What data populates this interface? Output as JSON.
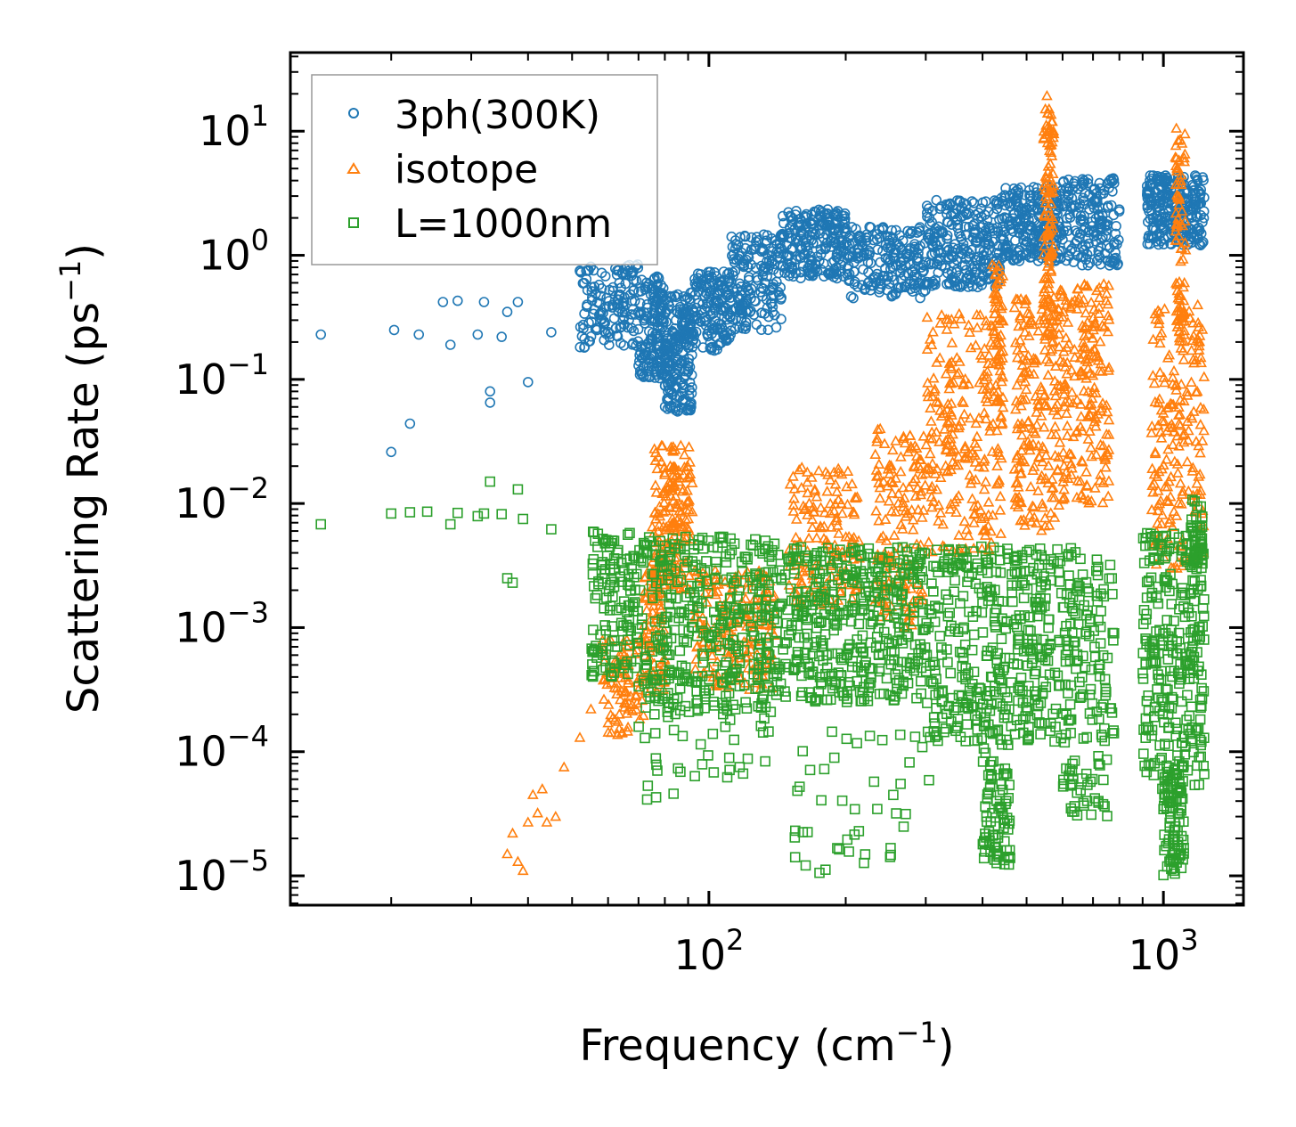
{
  "chart_data": {
    "type": "scatter",
    "title": "",
    "xlabel": "Frequency (cm",
    "xlabel_sup": "−1",
    "xlabel_end": ")",
    "ylabel": "Scattering Rate (ps",
    "ylabel_sup": "−1",
    "ylabel_end": ")",
    "xscale": "log",
    "yscale": "log",
    "xlim": [
      12,
      1500
    ],
    "ylim": [
      5.8e-06,
      43
    ],
    "xticks": [
      {
        "value": 100,
        "base": "10",
        "exp": "2"
      },
      {
        "value": 1000,
        "base": "10",
        "exp": "3"
      }
    ],
    "yticks": [
      {
        "value": 1e-05,
        "base": "10",
        "exp": "−5"
      },
      {
        "value": 0.0001,
        "base": "10",
        "exp": "−4"
      },
      {
        "value": 0.001,
        "base": "10",
        "exp": "−3"
      },
      {
        "value": 0.01,
        "base": "10",
        "exp": "−2"
      },
      {
        "value": 0.1,
        "base": "10",
        "exp": "−1"
      },
      {
        "value": 1,
        "base": "10",
        "exp": "0"
      },
      {
        "value": 10,
        "base": "10",
        "exp": "1"
      }
    ],
    "legend_position": "top-left",
    "series": [
      {
        "name": "3ph(300K)",
        "marker": "circle",
        "color": "#1f77b4",
        "anchor_points": [
          [
            14,
            0.23
          ],
          [
            20,
            0.026
          ],
          [
            20.3,
            0.25
          ],
          [
            22,
            0.044
          ],
          [
            23,
            0.23
          ],
          [
            26,
            0.42
          ],
          [
            27,
            0.19
          ],
          [
            28,
            0.43
          ],
          [
            31,
            0.23
          ],
          [
            32,
            0.42
          ],
          [
            33,
            0.08
          ],
          [
            33,
            0.065
          ],
          [
            35,
            0.22
          ],
          [
            36,
            0.35
          ],
          [
            38,
            0.42
          ],
          [
            40,
            0.095
          ],
          [
            45,
            0.24
          ]
        ],
        "bands": [
          {
            "x": [
              52,
              70
            ],
            "y": [
              0.18,
              0.85
            ],
            "n": 140
          },
          {
            "x": [
              70,
              80
            ],
            "y": [
              0.1,
              0.7
            ],
            "n": 150
          },
          {
            "x": [
              80,
              92
            ],
            "y": [
              0.055,
              0.5
            ],
            "n": 200
          },
          {
            "x": [
              92,
              112
            ],
            "y": [
              0.17,
              0.75
            ],
            "n": 150
          },
          {
            "x": [
              112,
              145
            ],
            "y": [
              0.25,
              1.5
            ],
            "n": 170
          },
          {
            "x": [
              145,
              200
            ],
            "y": [
              0.65,
              2.4
            ],
            "n": 210
          },
          {
            "x": [
              200,
              300
            ],
            "y": [
              0.45,
              1.7
            ],
            "n": 200
          },
          {
            "x": [
              300,
              440
            ],
            "y": [
              0.55,
              2.8
            ],
            "n": 250
          },
          {
            "x": [
              440,
              600
            ],
            "y": [
              0.9,
              3.6
            ],
            "n": 240
          },
          {
            "x": [
              600,
              800
            ],
            "y": [
              0.8,
              4.2
            ],
            "n": 170
          },
          {
            "x": [
              920,
              1230
            ],
            "y": [
              1.2,
              4.4
            ],
            "n": 260
          }
        ]
      },
      {
        "name": "isotope",
        "marker": "triangle",
        "color": "#ff7f0e",
        "anchor_points": [
          [
            36,
            1.5e-05
          ],
          [
            37,
            2.2e-05
          ],
          [
            38,
            1.3e-05
          ],
          [
            39,
            1.1e-05
          ],
          [
            40,
            2.7e-05
          ],
          [
            41,
            4.5e-05
          ],
          [
            42,
            3.2e-05
          ],
          [
            43,
            5e-05
          ],
          [
            44,
            2.7e-05
          ],
          [
            46,
            3e-05
          ],
          [
            48,
            7.5e-05
          ],
          [
            52,
            0.00013
          ],
          [
            55,
            0.00022
          ]
        ],
        "bands": [
          {
            "x": [
              58,
              72
            ],
            "y": [
              0.00013,
              0.0008
            ],
            "n": 90
          },
          {
            "x": [
              72,
              80
            ],
            "y": [
              0.0003,
              0.003
            ],
            "n": 90
          },
          {
            "x": [
              75,
              92
            ],
            "y": [
              0.002,
              0.03
            ],
            "n": 180
          },
          {
            "x": [
              92,
              140
            ],
            "y": [
              0.0003,
              0.003
            ],
            "n": 180
          },
          {
            "x": [
              150,
              215
            ],
            "y": [
              0.0015,
              0.02
            ],
            "n": 150
          },
          {
            "x": [
              230,
              300
            ],
            "y": [
              0.001,
              0.04
            ],
            "n": 150
          },
          {
            "x": [
              300,
              440
            ],
            "y": [
              0.004,
              0.35
            ],
            "n": 220
          },
          {
            "x": [
              420,
              445
            ],
            "y": [
              0.02,
              1.2
            ],
            "n": 70
          },
          {
            "x": [
              470,
              590
            ],
            "y": [
              0.006,
              0.45
            ],
            "n": 180
          },
          {
            "x": [
              545,
              575
            ],
            "y": [
              0.2,
              21
            ],
            "n": 120
          },
          {
            "x": [
              590,
              760
            ],
            "y": [
              0.01,
              0.6
            ],
            "n": 200
          },
          {
            "x": [
              940,
              1230
            ],
            "y": [
              0.003,
              0.4
            ],
            "n": 200
          },
          {
            "x": [
              1060,
              1120
            ],
            "y": [
              0.2,
              11
            ],
            "n": 80
          }
        ]
      },
      {
        "name": "L=1000nm",
        "marker": "square",
        "color": "#2ca02c",
        "anchor_points": [
          [
            14,
            0.0068
          ],
          [
            20,
            0.0083
          ],
          [
            22,
            0.0085
          ],
          [
            24,
            0.0086
          ],
          [
            27,
            0.0068
          ],
          [
            28,
            0.0084
          ],
          [
            31,
            0.0079
          ],
          [
            32,
            0.0083
          ],
          [
            33,
            0.015
          ],
          [
            35,
            0.0082
          ],
          [
            36,
            0.0025
          ],
          [
            37,
            0.0023
          ],
          [
            38,
            0.013
          ],
          [
            39,
            0.0075
          ],
          [
            45,
            0.0062
          ]
        ],
        "bands": [
          {
            "x": [
              55,
              70
            ],
            "y": [
              0.0004,
              0.0065
            ],
            "n": 130
          },
          {
            "x": [
              70,
              140
            ],
            "y": [
              0.0002,
              0.0055
            ],
            "n": 380
          },
          {
            "x": [
              70,
              140
            ],
            "y": [
              4e-05,
              0.00025
            ],
            "n": 40
          },
          {
            "x": [
              140,
              300
            ],
            "y": [
              0.00025,
              0.0045
            ],
            "n": 420
          },
          {
            "x": [
              150,
              320
            ],
            "y": [
              1e-05,
              0.00015
            ],
            "n": 45
          },
          {
            "x": [
              300,
              780
            ],
            "y": [
              0.00012,
              0.0045
            ],
            "n": 520
          },
          {
            "x": [
              400,
              460
            ],
            "y": [
              1.2e-05,
              0.00012
            ],
            "n": 80
          },
          {
            "x": [
              600,
              760
            ],
            "y": [
              3e-05,
              0.00012
            ],
            "n": 40
          },
          {
            "x": [
              900,
              1230
            ],
            "y": [
              5e-05,
              0.006
            ],
            "n": 280
          },
          {
            "x": [
              1000,
              1110
            ],
            "y": [
              1e-05,
              8e-05
            ],
            "n": 90
          },
          {
            "x": [
              1150,
              1230
            ],
            "y": [
              0.003,
              0.011
            ],
            "n": 40
          }
        ]
      }
    ]
  }
}
